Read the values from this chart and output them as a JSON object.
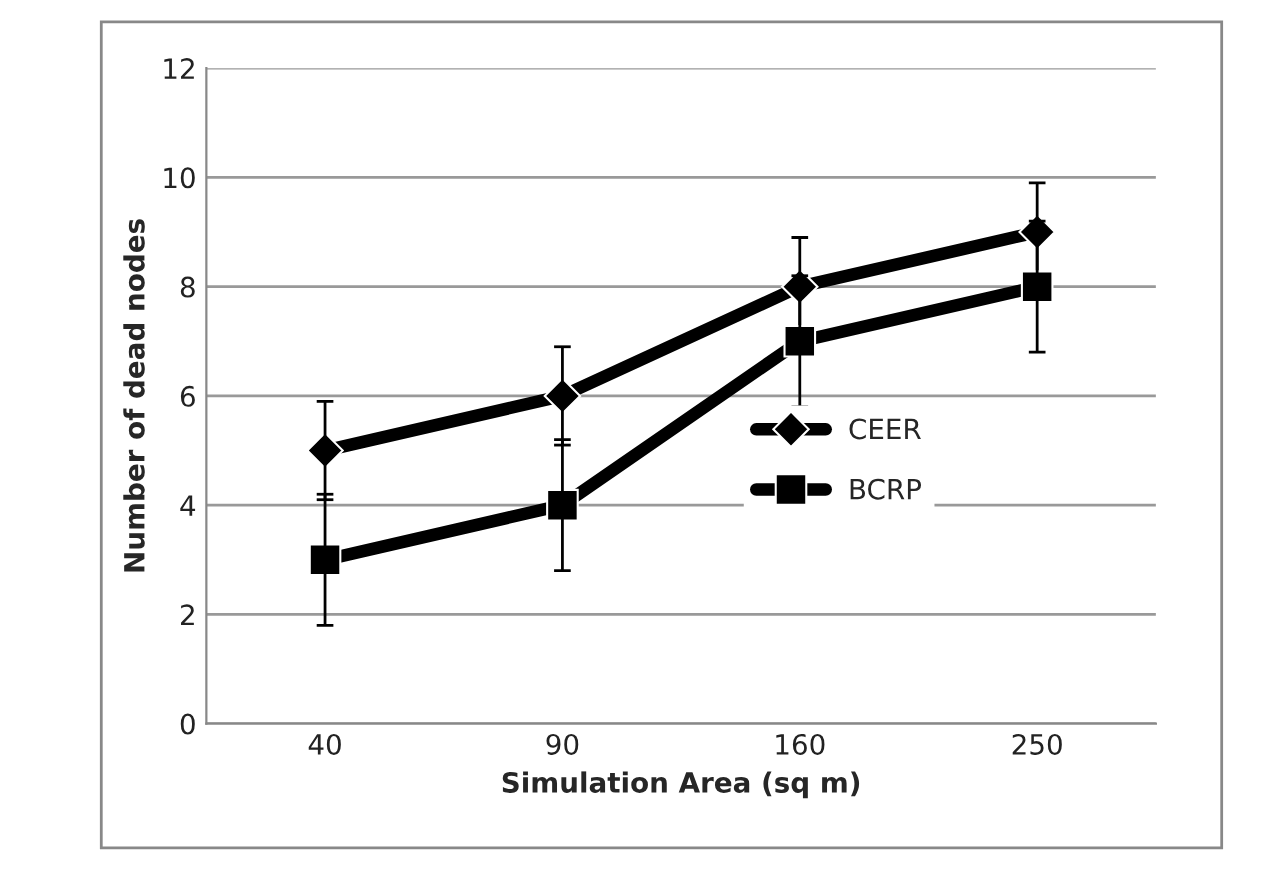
{
  "chart_data": {
    "type": "line",
    "xlabel": "Simulation Area (sq m)",
    "ylabel": "Number of dead nodes",
    "categories": [
      "40",
      "90",
      "160",
      "250"
    ],
    "series": [
      {
        "name": "CEER",
        "color": "#000000",
        "marker": "diamond",
        "values": [
          5,
          6,
          8,
          9
        ],
        "errors": [
          0.9,
          0.9,
          0.9,
          0.9
        ]
      },
      {
        "name": "BCRP",
        "color": "#000000",
        "marker": "square",
        "values": [
          3,
          4,
          7,
          8
        ],
        "errors": [
          1.2,
          1.2,
          1.2,
          1.2
        ]
      }
    ],
    "ylim": [
      0,
      12
    ],
    "yticks": [
      0,
      2,
      4,
      6,
      8,
      10,
      12
    ],
    "grid": "y",
    "legend": "right",
    "line_style": "solid"
  }
}
